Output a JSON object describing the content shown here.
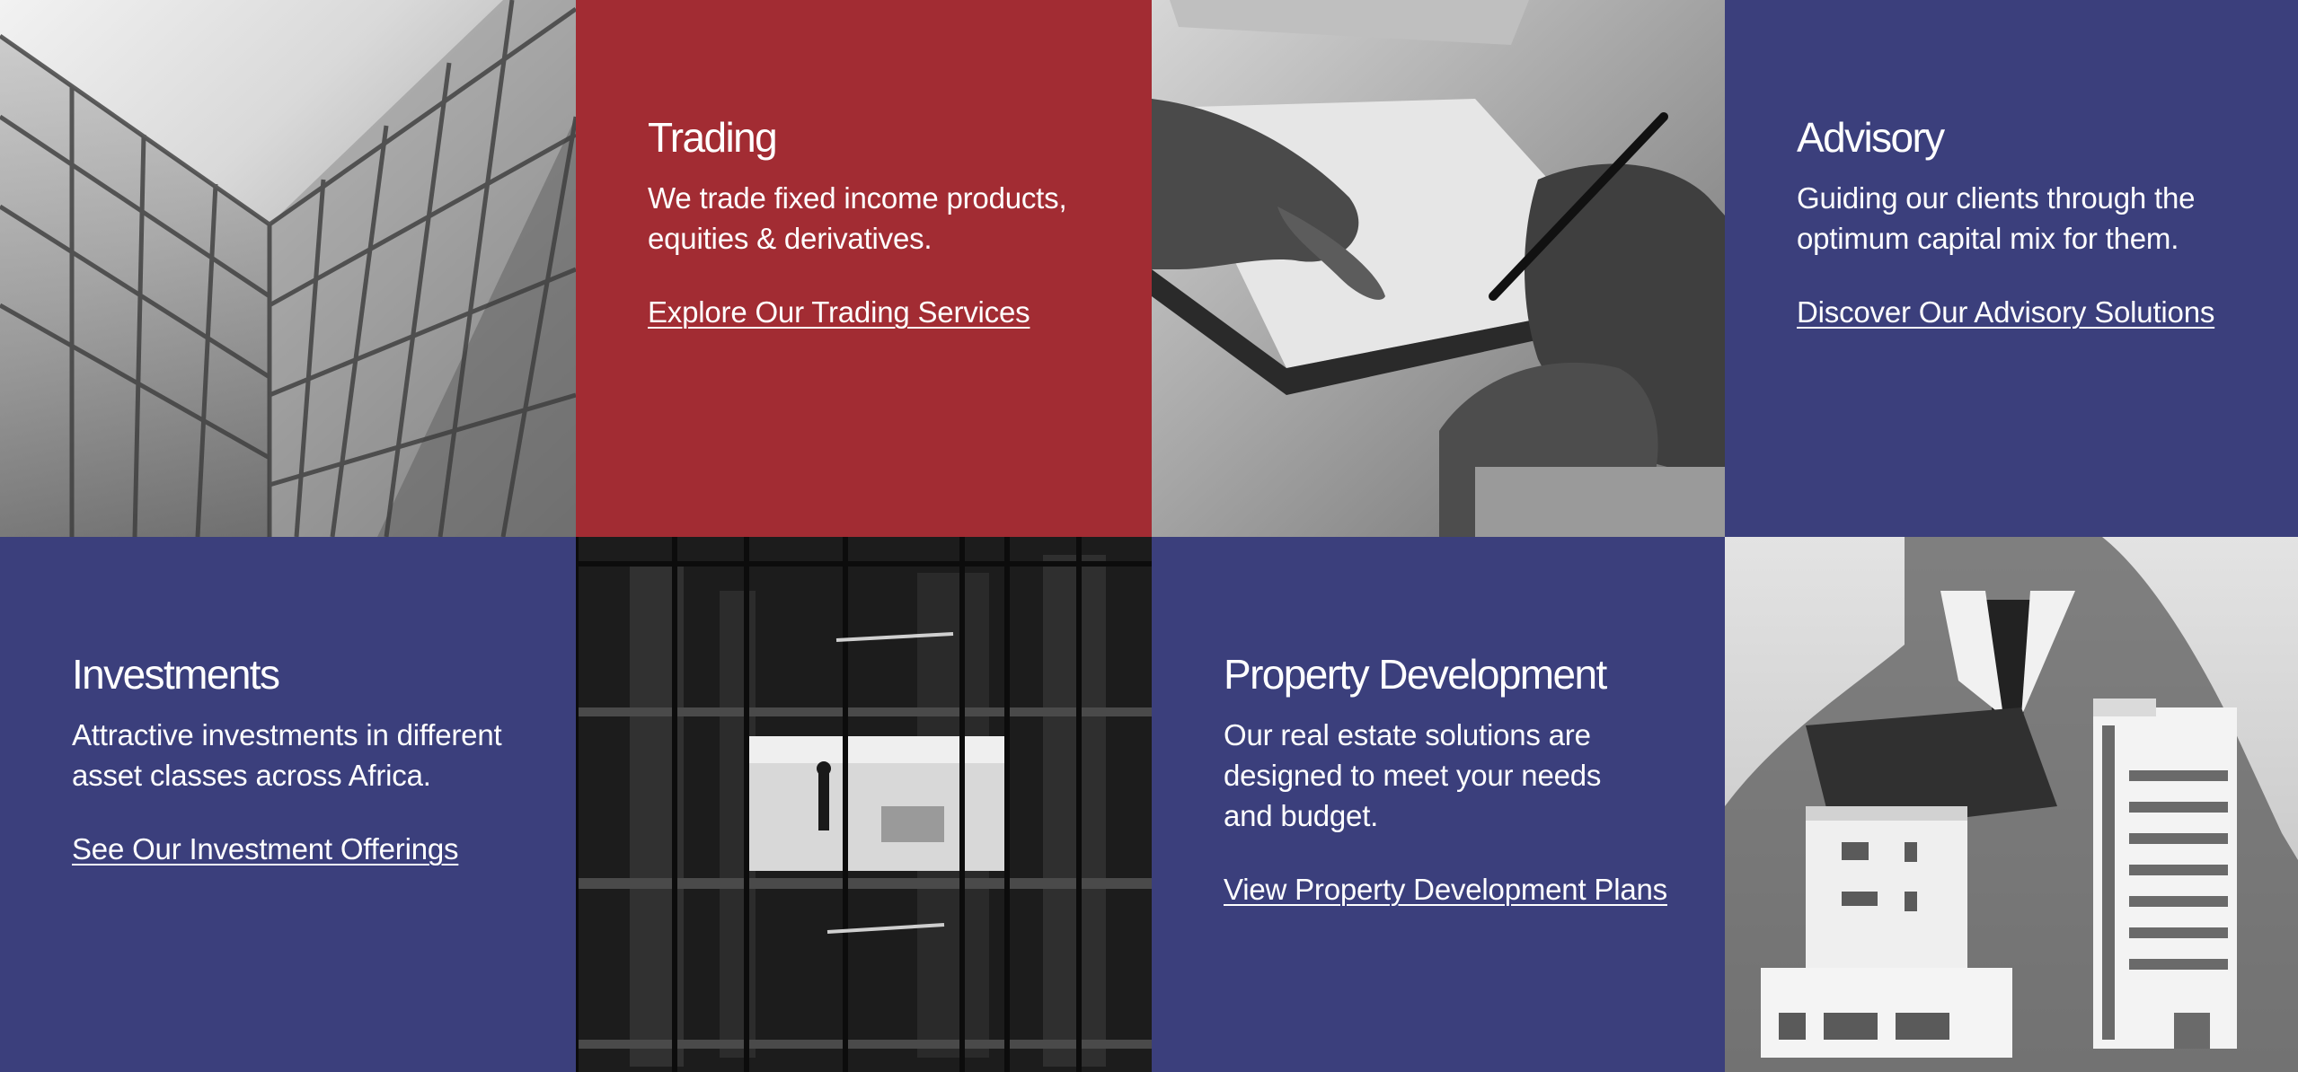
{
  "services": {
    "trading": {
      "title": "Trading",
      "description": "We trade fixed income products, equities & derivatives.",
      "link": "Explore Our Trading Services"
    },
    "advisory": {
      "title": "Advisory",
      "description": "Guiding our clients through the optimum capital mix for them.",
      "link": "Discover Our Advisory Solutions"
    },
    "investments": {
      "title": "Investments",
      "description": "Attractive investments in different asset classes across Africa.",
      "link": "See Our Investment Offerings"
    },
    "property": {
      "title": "Property Development",
      "description": "Our real estate solutions are designed to meet your needs and budget.",
      "link": "View Property Development Plans"
    }
  },
  "images": {
    "glass_building": "glass-skyscraper-photo",
    "signing_document": "hands-signing-document-photo",
    "office_window": "office-window-at-night-photo",
    "building_model": "architectural-model-photo"
  },
  "colors": {
    "red": "#a22c33",
    "navy": "#3b3f7c",
    "text": "#ffffff"
  }
}
